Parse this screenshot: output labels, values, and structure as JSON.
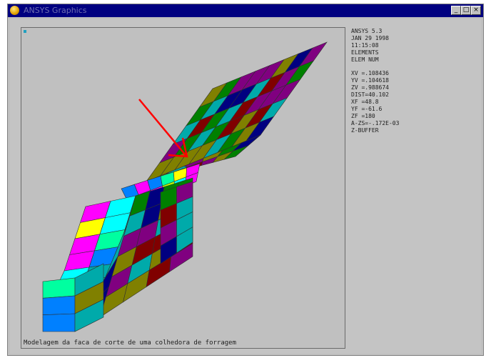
{
  "window": {
    "title": "ANSYS Graphics"
  },
  "legend": {
    "header": [
      "ANSYS 5.3",
      "JAN 29 1998",
      "11:15:08",
      "ELEMENTS",
      "ELEM NUM"
    ],
    "view": [
      "XV  =.108436",
      "YV  =.104618",
      "ZV  =.988674",
      "DIST=40.102",
      "XF  =48.8",
      "YF  =-61.6",
      "ZF  =180",
      "A-ZS=-.172E-03",
      "Z-BUFFER"
    ]
  },
  "caption": "Modelagem da faca de corte de uma colhedora de forragem",
  "colors": {
    "background": "#c0c0c0",
    "titlebar": "#000080",
    "arrow": "#ff0000",
    "palette": [
      "#00aaaa",
      "#800080",
      "#808000",
      "#008000",
      "#000080",
      "#800000",
      "#0080ff",
      "#00ffff",
      "#ff00ff",
      "#c0ff00",
      "#00ffa0",
      "#ffff00",
      "#ff0000"
    ]
  },
  "icons": [
    "ansys-app-icon",
    "minimize-icon",
    "maximize-icon",
    "close-icon",
    "annotation-arrow-icon"
  ]
}
